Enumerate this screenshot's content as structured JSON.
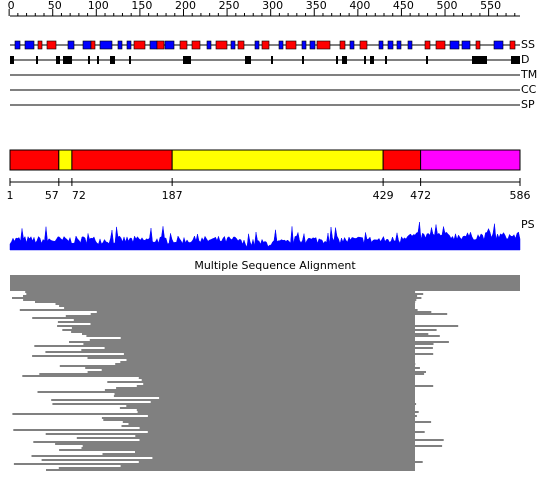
{
  "ruler": {
    "ticks": [
      0,
      50,
      100,
      150,
      200,
      250,
      300,
      350,
      400,
      450,
      500,
      550
    ]
  },
  "tracks": [
    "SS",
    "D",
    "TM",
    "CC",
    "SP"
  ],
  "domains": {
    "boundaries": [
      1,
      57,
      72,
      187,
      429,
      472,
      586
    ],
    "colors": [
      "#ff0000",
      "#ffff00",
      "#ff0000",
      "#ffff00",
      "#ff0000",
      "#ff00ff"
    ]
  },
  "profile_label": "PS",
  "msa_title": "Multiple Sequence Alignment"
}
